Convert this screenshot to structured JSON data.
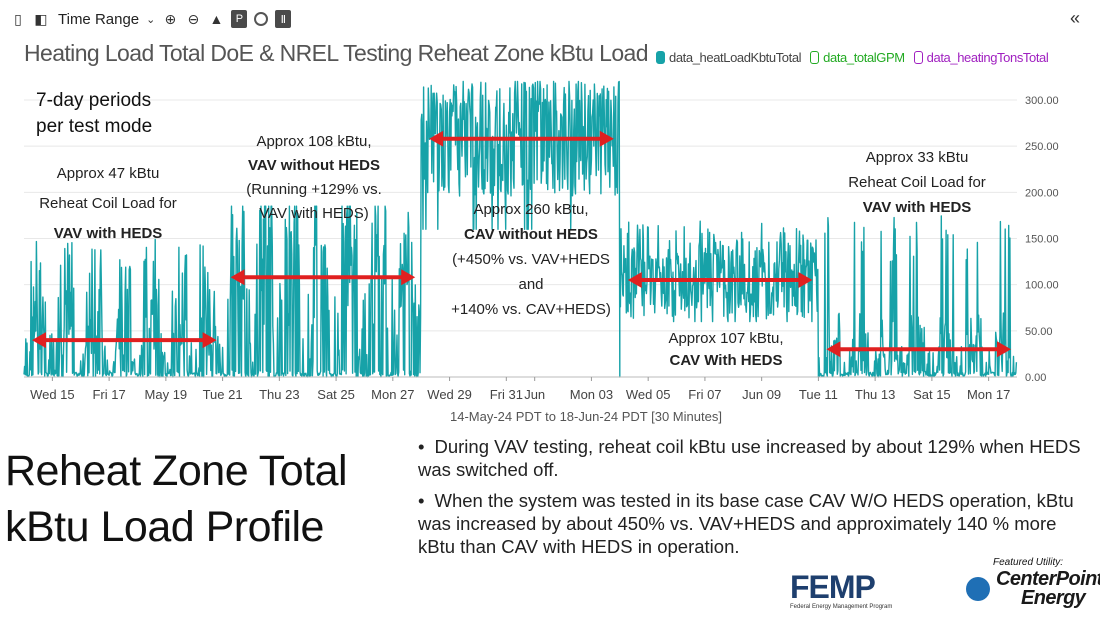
{
  "toolbar": {
    "time_range_label": "Time Range",
    "collapse_icon": "«"
  },
  "chart_data": {
    "type": "line",
    "title": "Heating Load Total DoE & NREL Testing Reheat Zone kBtu Load",
    "legend": [
      {
        "name": "data_heatLoadKbtuTotal",
        "color": "#17a2a8",
        "filled": true
      },
      {
        "name": "data_totalGPM",
        "color": "#22aa22",
        "filled": false
      },
      {
        "name": "data_heatingTonsTotal",
        "color": "#a020c0",
        "filled": false
      }
    ],
    "legend_placement": "top-right",
    "x_axis": {
      "start": "2024-05-14",
      "end": "2024-06-18",
      "range_label": "14-May-24 PDT to 18-Jun-24 PDT",
      "interval_label": "[30 Minutes]",
      "ticks": [
        {
          "date": "2024-05-15",
          "label": "Wed 15"
        },
        {
          "date": "2024-05-17",
          "label": "Fri 17"
        },
        {
          "date": "2024-05-19",
          "label": "May 19"
        },
        {
          "date": "2024-05-21",
          "label": "Tue 21"
        },
        {
          "date": "2024-05-23",
          "label": "Thu 23"
        },
        {
          "date": "2024-05-25",
          "label": "Sat 25"
        },
        {
          "date": "2024-05-27",
          "label": "Mon 27"
        },
        {
          "date": "2024-05-29",
          "label": "Wed 29"
        },
        {
          "date": "2024-05-31",
          "label": "Fri 31"
        },
        {
          "date": "2024-06-01",
          "label": "Jun"
        },
        {
          "date": "2024-06-03",
          "label": "Mon 03"
        },
        {
          "date": "2024-06-05",
          "label": "Wed 05"
        },
        {
          "date": "2024-06-07",
          "label": "Fri 07"
        },
        {
          "date": "2024-06-09",
          "label": "Jun 09"
        },
        {
          "date": "2024-06-11",
          "label": "Tue 11"
        },
        {
          "date": "2024-06-13",
          "label": "Thu 13"
        },
        {
          "date": "2024-06-15",
          "label": "Sat 15"
        },
        {
          "date": "2024-06-17",
          "label": "Mon 17"
        }
      ]
    },
    "y_axis": {
      "min": 0,
      "max": 300,
      "ticks": [
        "0.00",
        "50.00",
        "100.00",
        "150.00",
        "200.00",
        "250.00",
        "300.00"
      ],
      "placement": "right",
      "grid": true
    },
    "series": [
      {
        "name": "data_heatLoadKbtuTotal",
        "color": "#17a2a8",
        "periods": [
          {
            "start": "2024-05-14",
            "end": "2024-05-21",
            "base": 0,
            "peak": 150,
            "mean": 47
          },
          {
            "start": "2024-05-21",
            "end": "2024-05-28",
            "base": 0,
            "peak": 185,
            "mean": 108
          },
          {
            "start": "2024-05-28",
            "end": "2024-06-04",
            "base": 160,
            "peak": 320,
            "mean": 260
          },
          {
            "start": "2024-06-04",
            "end": "2024-06-11",
            "base": 60,
            "peak": 170,
            "mean": 107
          },
          {
            "start": "2024-06-11",
            "end": "2024-06-18",
            "base": 0,
            "peak": 175,
            "mean": 33
          }
        ]
      }
    ],
    "periods_note": [
      "7-day periods",
      "per test mode"
    ],
    "period_markers": [
      {
        "start": "2024-05-14",
        "end": "2024-05-21",
        "y": 40,
        "color": "#e02020"
      },
      {
        "start": "2024-05-21",
        "end": "2024-05-28",
        "y": 108,
        "color": "#e02020"
      },
      {
        "start": "2024-05-28",
        "end": "2024-06-04",
        "y": 258,
        "color": "#e02020"
      },
      {
        "start": "2024-06-04",
        "end": "2024-06-11",
        "y": 105,
        "color": "#e02020"
      },
      {
        "start": "2024-06-11",
        "end": "2024-06-18",
        "y": 30,
        "color": "#e02020"
      }
    ],
    "annotations": [
      {
        "lines": [
          "Approx 47 kBtu",
          "Reheat Coil Load for",
          "**VAV with HEDS**"
        ]
      },
      {
        "lines": [
          "Approx 108 kBtu,",
          "**VAV without HEDS**",
          "(Running +129% vs.",
          "VAV with HEDS)"
        ]
      },
      {
        "lines": [
          "Approx 260 kBtu,",
          "**CAV without HEDS**",
          "(+450% vs. VAV+HEDS",
          "and",
          "+140% vs. CAV+HEDS)"
        ]
      },
      {
        "lines": [
          "Approx 107 kBtu,",
          "**CAV With HEDS**"
        ]
      },
      {
        "lines": [
          "Approx 33 kBtu",
          "Reheat Coil Load for",
          "**VAV with HEDS**"
        ]
      }
    ]
  },
  "slide": {
    "title_lines": [
      "Reheat Zone Total",
      "kBtu Load Profile"
    ],
    "bullets": [
      "During VAV testing, reheat coil kBtu use increased by about 129% when HEDS was switched off.",
      "When the system was tested in its base case CAV W/O HEDS operation, kBtu was increased by about 450% vs. VAV+HEDS and approximately 140 % more kBtu than CAV with HEDS in operation."
    ]
  },
  "logos": {
    "femp": "FEMP",
    "femp_subtitle": "Federal Energy Management Program",
    "featured_label": "Featured Utility:",
    "centerpoint": [
      "CenterPoint.",
      "Energy"
    ]
  }
}
